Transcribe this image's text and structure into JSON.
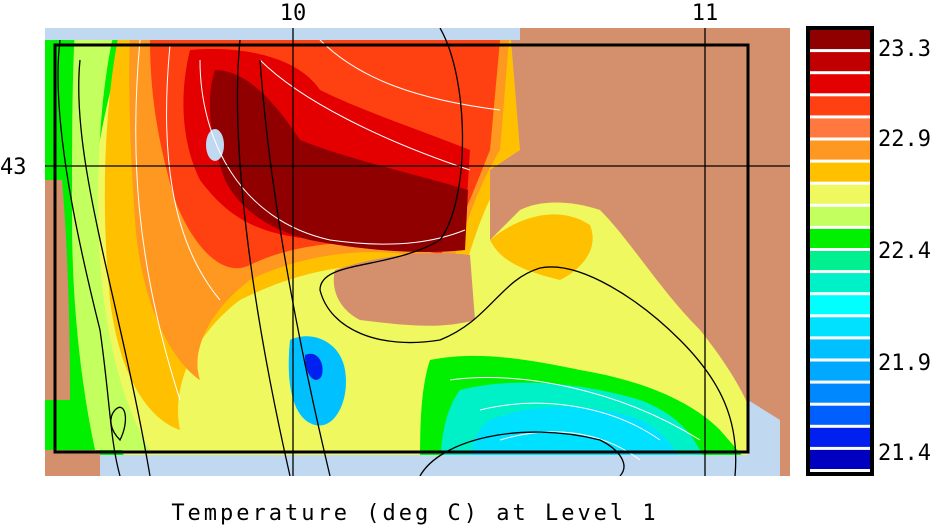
{
  "chart_data": {
    "type": "heatmap",
    "title": "Temperature (deg C) at Level 1",
    "x_ticks": [
      "10",
      "11"
    ],
    "y_ticks": [
      "43"
    ],
    "colorbar": {
      "tick_labels": [
        "23.3",
        "22.9",
        "22.4",
        "21.9",
        "21.4"
      ],
      "range": [
        21.4,
        23.3
      ],
      "colors": [
        "#900000",
        "#c00000",
        "#e40000",
        "#ff4010",
        "#ff7840",
        "#ff9820",
        "#ffc000",
        "#f0f860",
        "#c4ff60",
        "#00f000",
        "#00f090",
        "#00f0c8",
        "#00ffff",
        "#00e0ff",
        "#00c0ff",
        "#00a8ff",
        "#0088ff",
        "#0060ff",
        "#0020f0",
        "#0000c0"
      ]
    },
    "land_color": "#d4906c",
    "masked_color": "#c0d8f0"
  }
}
